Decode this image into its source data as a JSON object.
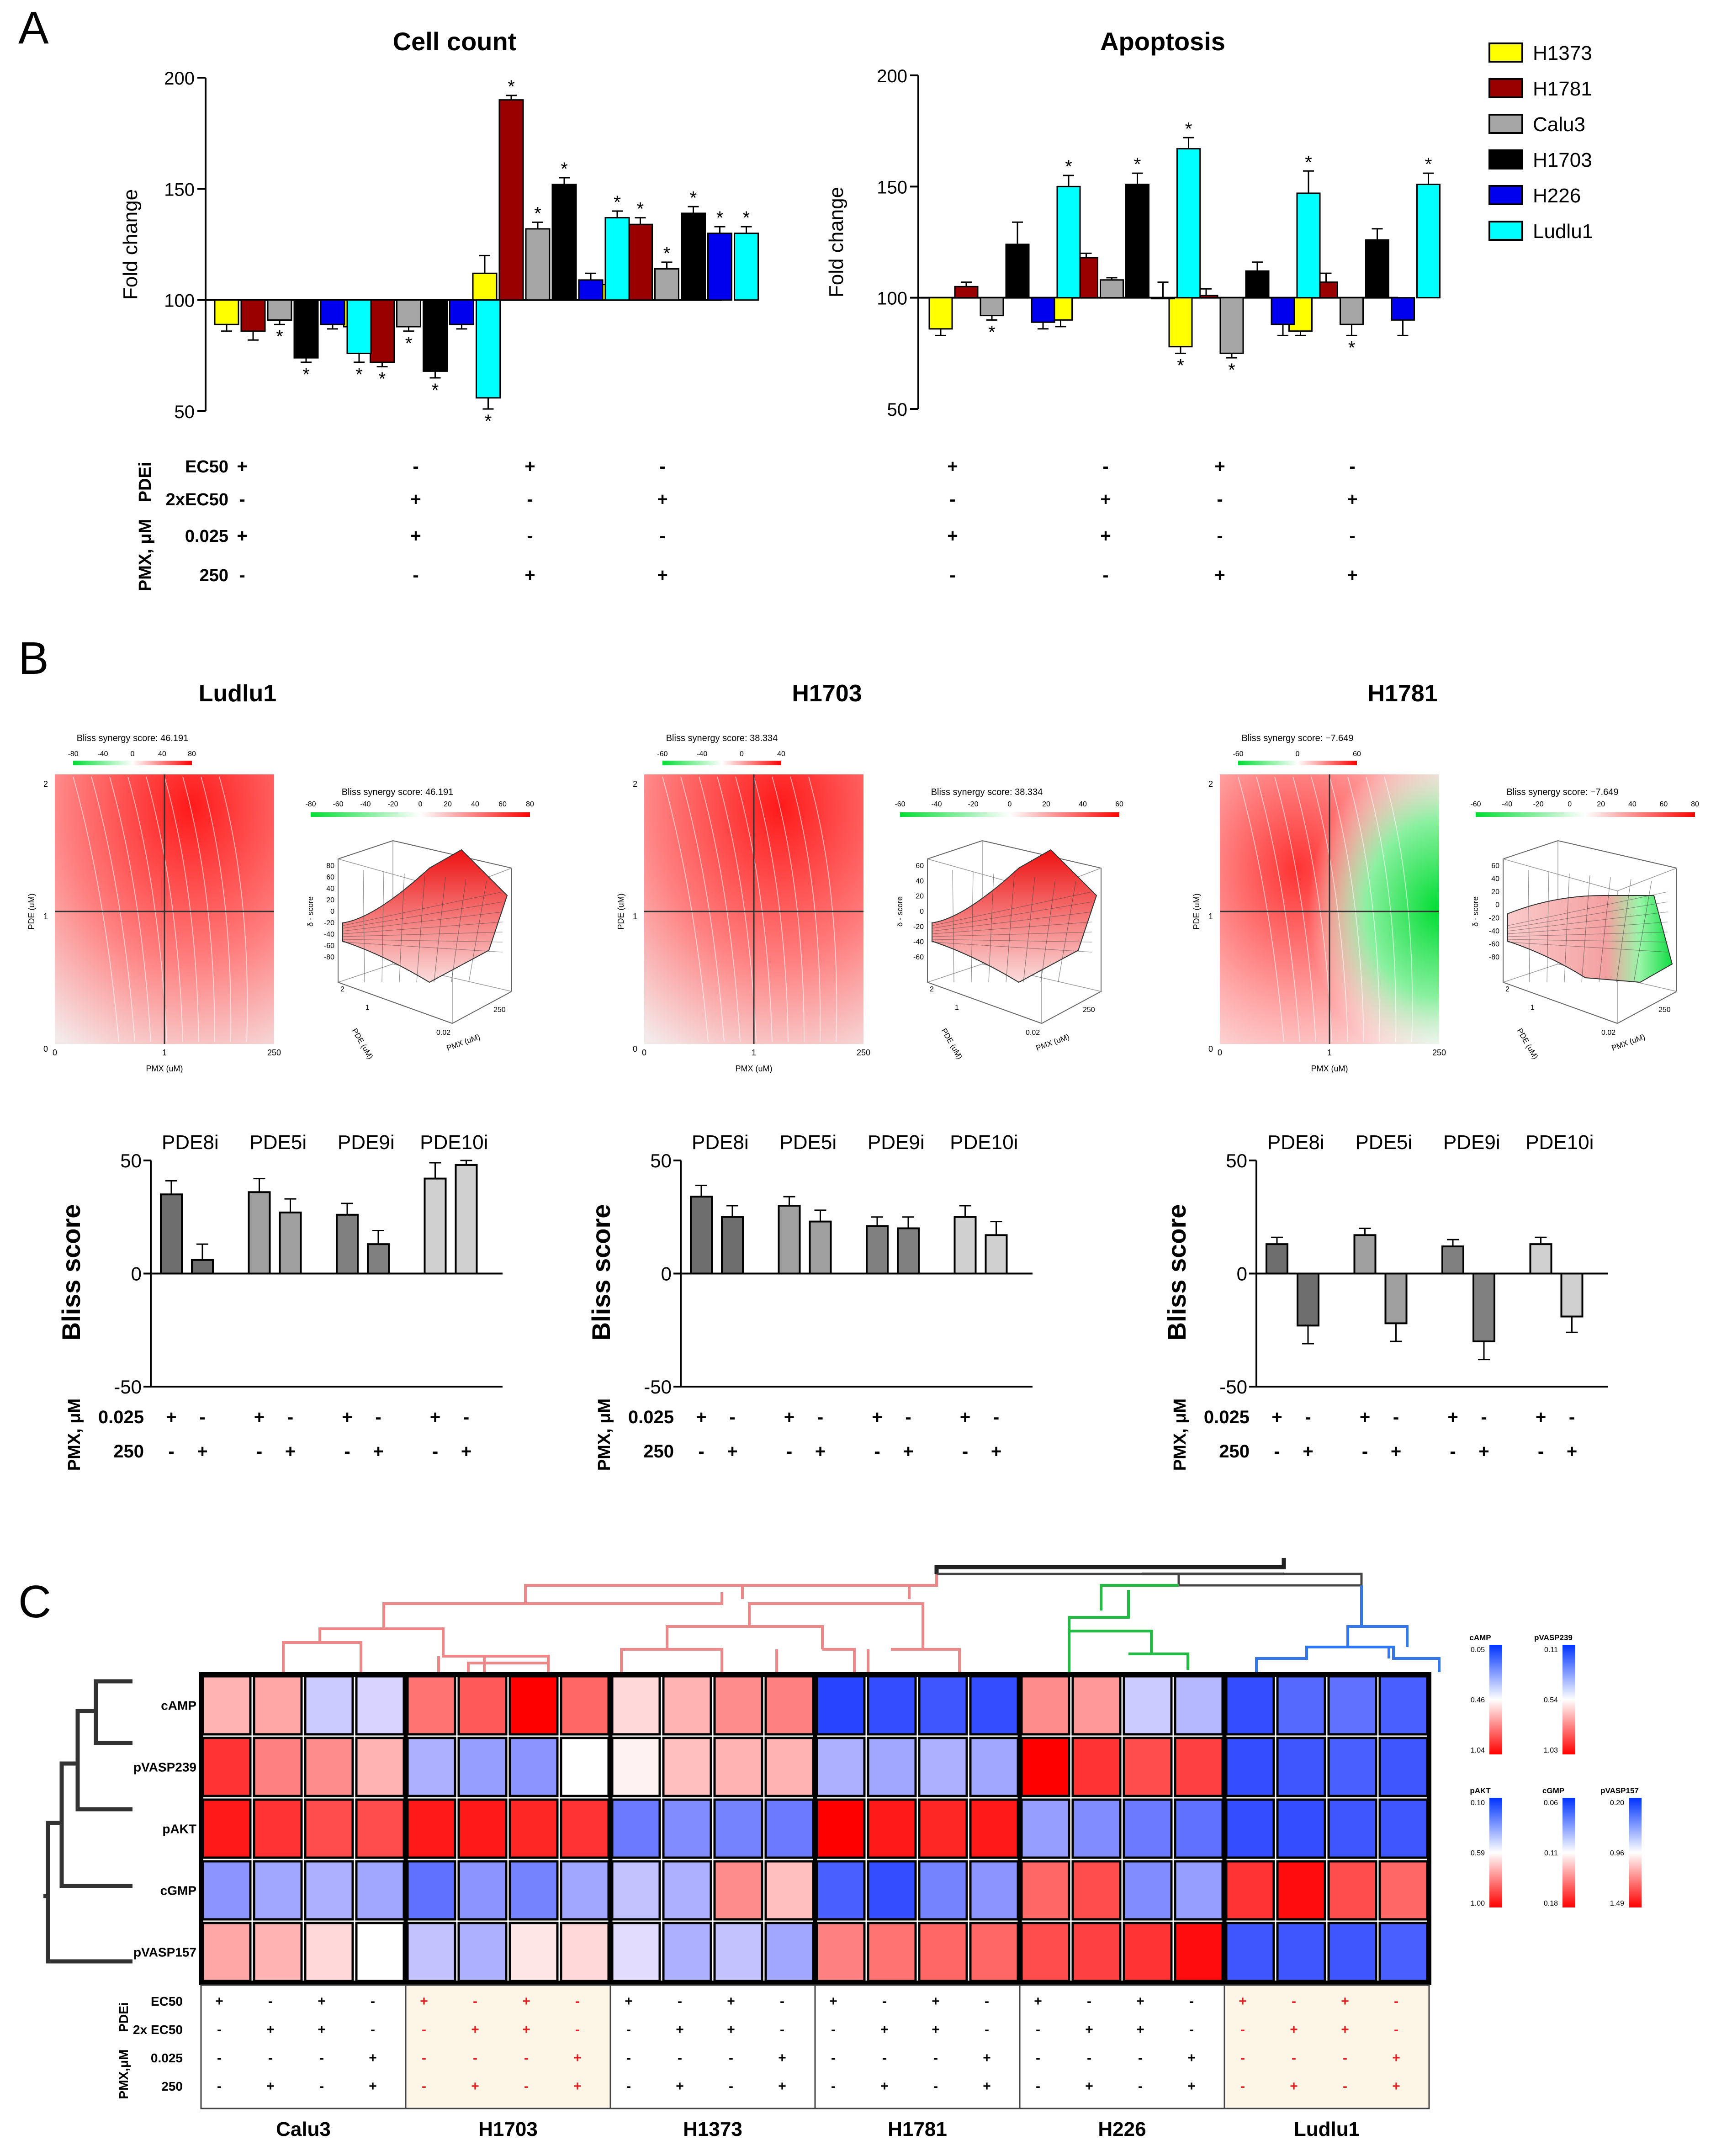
{
  "panels": {
    "A": "A",
    "B": "B",
    "C": "C"
  },
  "legend": [
    {
      "name": "H1373",
      "color": "#ffff00"
    },
    {
      "name": "H1781",
      "color": "#990000"
    },
    {
      "name": "Calu3",
      "color": "#a6a6a6"
    },
    {
      "name": "H1703",
      "color": "#000000"
    },
    {
      "name": "H226",
      "color": "#0000ee"
    },
    {
      "name": "Ludlu1",
      "color": "#00ffff"
    }
  ],
  "colors": {
    "positive": "#ff0000",
    "negative": "#00dd33",
    "heat_high": "#ff0000",
    "heat_low": "#0033ff",
    "highlight": "#fdf6e6"
  },
  "panelA_conditions": {
    "pdei_group": "PDEi",
    "pmx_group": "PMX, μM",
    "rows": [
      {
        "label": "EC50",
        "marks": [
          "+",
          "-",
          "+",
          "-"
        ]
      },
      {
        "label": "2xEC50",
        "marks": [
          "-",
          "+",
          "-",
          "+"
        ]
      },
      {
        "label": "0.025",
        "marks": [
          "+",
          "+",
          "-",
          "-"
        ]
      },
      {
        "label": "250",
        "marks": [
          "-",
          "-",
          "+",
          "+"
        ]
      }
    ]
  },
  "panelB_conditions": {
    "pmx_group": "PMX, μM",
    "rows": [
      {
        "label": "0.025",
        "marks": [
          "+",
          "-",
          "+",
          "-",
          "+",
          "-",
          "+",
          "-"
        ]
      },
      {
        "label": "250",
        "marks": [
          "-",
          "+",
          "-",
          "+",
          "-",
          "+",
          "-",
          "+"
        ]
      }
    ]
  },
  "synergy": [
    {
      "cell": "Ludlu1",
      "score_label": "Bliss synergy score: 46.191",
      "scale_ticks": [
        "-80",
        "-40",
        "0",
        "40",
        "80"
      ],
      "wide_ticks": [
        "-80",
        "-60",
        "-40",
        "-20",
        "0",
        "20",
        "40",
        "60",
        "80"
      ],
      "contour_yticks": [
        "2",
        "1",
        "0"
      ],
      "contour_xticks": [
        "0",
        "1",
        "250"
      ],
      "z_ticks": [
        "80",
        "60",
        "40",
        "20",
        "0",
        "-20",
        "-40",
        "-60",
        "-80"
      ],
      "pattern": "all-red"
    },
    {
      "cell": "H1703",
      "score_label": "Bliss synergy score: 38.334",
      "scale_ticks": [
        "-60",
        "-40",
        "0",
        "40"
      ],
      "wide_ticks": [
        "-60",
        "-40",
        "-20",
        "0",
        "20",
        "40",
        "60"
      ],
      "contour_yticks": [
        "2",
        "1",
        "0"
      ],
      "contour_xticks": [
        "0",
        "1",
        "250"
      ],
      "z_ticks": [
        "60",
        "40",
        "20",
        "0",
        "-20",
        "-40",
        "-60"
      ],
      "pattern": "all-red"
    },
    {
      "cell": "H1781",
      "score_label": "Bliss synergy score: −7.649",
      "scale_ticks": [
        "-60",
        "0",
        "60"
      ],
      "wide_ticks": [
        "-60",
        "-40",
        "-20",
        "0",
        "20",
        "40",
        "60",
        "80"
      ],
      "contour_yticks": [
        "2",
        "1",
        "0"
      ],
      "contour_xticks": [
        "0",
        "1",
        "250"
      ],
      "z_ticks": [
        "60",
        "40",
        "20",
        "0",
        "-20",
        "-40",
        "-60",
        "-80"
      ],
      "pattern": "red-green"
    }
  ],
  "surface_labels": {
    "x": "PMX (uM)",
    "y": "PDE (uM)",
    "z": "δ - score",
    "x_ticks": [
      "0.02",
      "250"
    ],
    "y_ticks": [
      "1",
      "2"
    ]
  },
  "heatmap_meta": {
    "groups": [
      "Calu3",
      "H1703",
      "H1373",
      "H1781",
      "H226",
      "Ludlu1"
    ],
    "highlight": [
      false,
      true,
      false,
      false,
      false,
      true
    ],
    "cond_rows": [
      "EC50",
      "2x EC50",
      "0.025",
      "250"
    ],
    "cond_marks": [
      [
        "+",
        "-",
        "+",
        "-"
      ],
      [
        "-",
        "+",
        "+",
        "-"
      ],
      [
        "-",
        "-",
        "-",
        "+"
      ],
      [
        "-",
        "+",
        "-",
        "+"
      ]
    ],
    "pdei_group": "PDEi",
    "pmx_group": "PMX,μM",
    "scales": [
      {
        "name": "cAMP",
        "ticks": [
          "0.05",
          "0.46",
          "1.04"
        ]
      },
      {
        "name": "pVASP239",
        "ticks": [
          "0.11",
          "0.54",
          "1.03"
        ]
      },
      {
        "name": "pAKT",
        "ticks": [
          "0.10",
          "0.59",
          "1.00"
        ]
      },
      {
        "name": "cGMP",
        "ticks": [
          "0.06",
          "0.11",
          "0.18"
        ]
      },
      {
        "name": "pVASP157",
        "ticks": [
          "0.20",
          "0.96",
          "1.49"
        ]
      }
    ]
  },
  "chart_data": [
    {
      "type": "bar",
      "title": "Cell count",
      "ylabel": "Fold change",
      "ylim": [
        50,
        200
      ],
      "yticks": [
        50,
        100,
        150,
        200
      ],
      "baseline": 100,
      "categories": [
        "PDEi EC50 + PMX 0.025",
        "PDEi 2xEC50 + PMX 0.025",
        "PDEi EC50 + PMX 250",
        "PDEi 2xEC50 + PMX 250"
      ],
      "series": [
        {
          "name": "H1373",
          "values": [
            89,
            88,
            112,
            107
          ],
          "errors": [
            3,
            2,
            8,
            5
          ],
          "sig": [
            false,
            false,
            false,
            false
          ]
        },
        {
          "name": "H1781",
          "values": [
            86,
            72,
            190,
            134
          ],
          "errors": [
            4,
            2,
            2,
            3
          ],
          "sig": [
            false,
            true,
            true,
            true
          ]
        },
        {
          "name": "Calu3",
          "values": [
            91,
            88,
            132,
            114
          ],
          "errors": [
            2,
            2,
            3,
            3
          ],
          "sig": [
            true,
            true,
            true,
            true
          ]
        },
        {
          "name": "H1703",
          "values": [
            74,
            68,
            152,
            139
          ],
          "errors": [
            2,
            3,
            3,
            3
          ],
          "sig": [
            true,
            true,
            true,
            true
          ]
        },
        {
          "name": "H226",
          "values": [
            89,
            89,
            109,
            130
          ],
          "errors": [
            2,
            2,
            3,
            3
          ],
          "sig": [
            false,
            false,
            false,
            true
          ]
        },
        {
          "name": "Ludlu1",
          "values": [
            76,
            56,
            137,
            130
          ],
          "errors": [
            4,
            5,
            3,
            3
          ],
          "sig": [
            true,
            true,
            true,
            true
          ]
        }
      ]
    },
    {
      "type": "bar",
      "title": "Apoptosis",
      "ylabel": "Fold change",
      "ylim": [
        50,
        200
      ],
      "yticks": [
        50,
        100,
        150,
        200
      ],
      "baseline": 100,
      "categories": [
        "PDEi EC50 + PMX 0.025",
        "PDEi 2xEC50 + PMX 0.025",
        "PDEi EC50 + PMX 250",
        "PDEi 2xEC50 + PMX 250"
      ],
      "series": [
        {
          "name": "H1373",
          "values": [
            86,
            90,
            78,
            85
          ],
          "errors": [
            3,
            3,
            3,
            2
          ],
          "sig": [
            false,
            false,
            true,
            false
          ]
        },
        {
          "name": "H1781",
          "values": [
            105,
            118,
            101,
            107
          ],
          "errors": [
            2,
            2,
            3,
            4
          ],
          "sig": [
            false,
            false,
            false,
            false
          ]
        },
        {
          "name": "Calu3",
          "values": [
            92,
            108,
            75,
            88
          ],
          "errors": [
            2,
            1,
            2,
            5
          ],
          "sig": [
            true,
            false,
            true,
            true
          ]
        },
        {
          "name": "H1703",
          "values": [
            124,
            151,
            112,
            126
          ],
          "errors": [
            10,
            5,
            4,
            5
          ],
          "sig": [
            false,
            true,
            false,
            false
          ]
        },
        {
          "name": "H226",
          "values": [
            89,
            100,
            88,
            90
          ],
          "errors": [
            3,
            7,
            5,
            7
          ],
          "sig": [
            false,
            false,
            false,
            false
          ]
        },
        {
          "name": "Ludlu1",
          "values": [
            150,
            167,
            147,
            151
          ],
          "errors": [
            5,
            5,
            10,
            5
          ],
          "sig": [
            true,
            true,
            true,
            true
          ]
        }
      ]
    },
    {
      "type": "bar",
      "title": "Ludlu1",
      "ylabel": "Bliss score",
      "ylim": [
        -50,
        50
      ],
      "yticks": [
        -50,
        0,
        50
      ],
      "categories": [
        "PDE8i",
        "PDE5i",
        "PDE9i",
        "PDE10i"
      ],
      "values": [
        [
          35,
          6
        ],
        [
          36,
          27
        ],
        [
          26,
          13
        ],
        [
          42,
          48
        ]
      ],
      "errors": [
        [
          6,
          7
        ],
        [
          6,
          6
        ],
        [
          5,
          6
        ],
        [
          7,
          2
        ]
      ]
    },
    {
      "type": "bar",
      "title": "H1703",
      "ylabel": "Bliss score",
      "ylim": [
        -50,
        50
      ],
      "yticks": [
        -50,
        0,
        50
      ],
      "categories": [
        "PDE8i",
        "PDE5i",
        "PDE9i",
        "PDE10i"
      ],
      "values": [
        [
          34,
          25
        ],
        [
          30,
          23
        ],
        [
          21,
          20
        ],
        [
          25,
          17
        ]
      ],
      "errors": [
        [
          5,
          5
        ],
        [
          4,
          5
        ],
        [
          4,
          5
        ],
        [
          5,
          6
        ]
      ]
    },
    {
      "type": "bar",
      "title": "H1781",
      "ylabel": "Bliss score",
      "ylim": [
        -50,
        50
      ],
      "yticks": [
        -50,
        0,
        50
      ],
      "categories": [
        "PDE8i",
        "PDE5i",
        "PDE9i",
        "PDE10i"
      ],
      "values": [
        [
          13,
          -23
        ],
        [
          17,
          -22
        ],
        [
          12,
          -30
        ],
        [
          13,
          -19
        ]
      ],
      "errors": [
        [
          3,
          8
        ],
        [
          3,
          8
        ],
        [
          3,
          8
        ],
        [
          3,
          7
        ]
      ]
    },
    {
      "type": "heatmap",
      "rows": [
        "cAMP",
        "pVASP239",
        "pAKT",
        "cGMP",
        "pVASP157"
      ],
      "columns": [
        "Calu3",
        "Calu3",
        "Calu3",
        "Calu3",
        "H1703",
        "H1703",
        "H1703",
        "H1703",
        "H1373",
        "H1373",
        "H1373",
        "H1373",
        "H1781",
        "H1781",
        "H1781",
        "H1781",
        "H226",
        "H226",
        "H226",
        "H226",
        "Ludlu1",
        "Ludlu1",
        "Ludlu1",
        "Ludlu1"
      ],
      "values": [
        [
          0.3,
          0.35,
          -0.15,
          -0.1,
          0.55,
          0.65,
          1.0,
          0.6,
          0.15,
          0.3,
          0.45,
          0.5,
          -0.9,
          -0.85,
          -0.8,
          -0.85,
          0.45,
          0.4,
          -0.15,
          -0.25,
          -0.85,
          -0.7,
          -0.65,
          -0.75
        ],
        [
          0.8,
          0.5,
          0.45,
          0.3,
          -0.3,
          -0.4,
          -0.45,
          0.0,
          0.05,
          0.25,
          0.3,
          0.3,
          -0.3,
          -0.35,
          -0.3,
          -0.35,
          1.0,
          0.8,
          0.7,
          0.75,
          -0.85,
          -0.8,
          -0.75,
          -0.8
        ],
        [
          0.9,
          0.8,
          0.7,
          0.7,
          0.9,
          0.9,
          0.85,
          0.8,
          -0.6,
          -0.5,
          -0.55,
          -0.6,
          1.0,
          0.9,
          0.85,
          0.9,
          -0.4,
          -0.5,
          -0.6,
          -0.65,
          -0.85,
          -0.85,
          -0.8,
          -0.8
        ],
        [
          -0.45,
          -0.35,
          -0.3,
          -0.35,
          -0.65,
          -0.45,
          -0.55,
          -0.35,
          -0.2,
          -0.3,
          0.45,
          0.25,
          -0.75,
          -0.85,
          -0.55,
          -0.45,
          0.6,
          0.7,
          -0.5,
          -0.4,
          0.8,
          0.95,
          0.7,
          0.6
        ],
        [
          0.35,
          0.3,
          0.15,
          0.0,
          -0.2,
          -0.3,
          0.1,
          0.15,
          -0.05,
          -0.3,
          -0.2,
          -0.35,
          0.5,
          0.55,
          0.6,
          0.6,
          0.7,
          0.75,
          0.8,
          0.95,
          -0.8,
          -0.8,
          -0.8,
          -0.75
        ]
      ]
    }
  ]
}
